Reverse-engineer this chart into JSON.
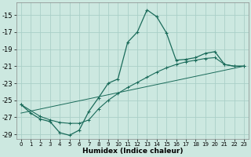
{
  "xlabel": "Humidex (Indice chaleur)",
  "background_color": "#cce8e0",
  "grid_color": "#aacfc8",
  "line_color": "#1a6b5a",
  "xlim": [
    -0.5,
    23.5
  ],
  "ylim": [
    -29.5,
    -13.5
  ],
  "xticks": [
    0,
    1,
    2,
    3,
    4,
    5,
    6,
    7,
    8,
    9,
    10,
    11,
    12,
    13,
    14,
    15,
    16,
    17,
    18,
    19,
    20,
    21,
    22,
    23
  ],
  "yticks": [
    -29,
    -27,
    -25,
    -23,
    -21,
    -19,
    -17,
    -15
  ],
  "line1_x": [
    0,
    1,
    2,
    3,
    4,
    5,
    6,
    7,
    8,
    9,
    10,
    11,
    12,
    13,
    14,
    15,
    16,
    17,
    18,
    19,
    20,
    21,
    22,
    23
  ],
  "line1_y": [
    -25.5,
    -26.5,
    -27.2,
    -27.5,
    -28.8,
    -29.1,
    -28.5,
    -26.3,
    -24.7,
    -23.0,
    -22.5,
    -18.2,
    -17.0,
    -14.4,
    -15.2,
    -17.1,
    -20.3,
    -20.2,
    -20.0,
    -19.5,
    -19.3,
    -20.8,
    -21.0,
    -21.0
  ],
  "line2_x": [
    0,
    2,
    3,
    4,
    5,
    6,
    7,
    8,
    9,
    10,
    11,
    12,
    13,
    14,
    15,
    16,
    17,
    18,
    19,
    20,
    21,
    22,
    23
  ],
  "line2_y": [
    -25.5,
    -26.9,
    -27.3,
    -27.6,
    -27.7,
    -27.7,
    -27.3,
    -26.0,
    -25.0,
    -24.2,
    -23.5,
    -22.9,
    -22.3,
    -21.7,
    -21.2,
    -20.8,
    -20.5,
    -20.3,
    -20.1,
    -20.0,
    -20.8,
    -21.0,
    -21.0
  ],
  "line3_x": [
    0,
    23
  ],
  "line3_y": [
    -26.5,
    -21.0
  ]
}
